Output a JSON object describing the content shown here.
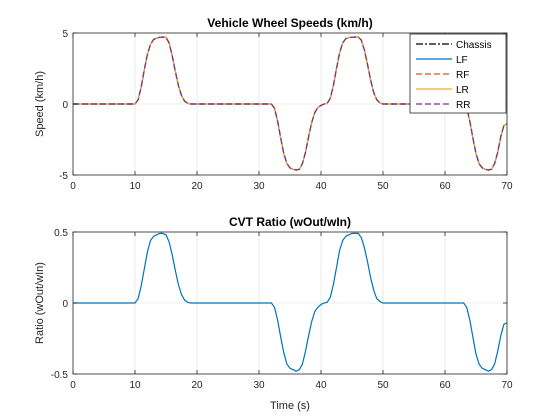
{
  "chart_data": [
    {
      "type": "line",
      "title": "Vehicle Wheel Speeds (km/h)",
      "xlabel": "",
      "ylabel": "Speed (km/h)",
      "xlim": [
        0,
        70
      ],
      "ylim": [
        -5,
        5
      ],
      "xticks": [
        "0",
        "10",
        "20",
        "30",
        "40",
        "50",
        "60",
        "70"
      ],
      "yticks": [
        "-5",
        "0",
        "5"
      ],
      "grid": true,
      "legend_position": "top-right",
      "series": [
        {
          "name": "Chassis",
          "color": "#000000",
          "style": "dash-dot"
        },
        {
          "name": "LF",
          "color": "#0072BD",
          "style": "solid"
        },
        {
          "name": "RF",
          "color": "#D95319",
          "style": "dashed"
        },
        {
          "name": "LR",
          "color": "#EDB120",
          "style": "solid"
        },
        {
          "name": "RR",
          "color": "#7E2F8E",
          "style": "dashed"
        }
      ],
      "x": [
        0,
        10,
        10.5,
        11,
        11.5,
        12,
        12.5,
        13,
        13.5,
        14,
        14.5,
        15,
        15.5,
        16,
        16.5,
        17,
        17.5,
        18,
        18.5,
        19,
        20,
        32,
        32.5,
        33,
        33.5,
        34,
        34.5,
        35,
        35.5,
        36,
        36.5,
        37,
        37.5,
        38,
        38.5,
        39,
        39.5,
        40,
        40.5,
        41,
        41.5,
        42,
        42.5,
        43,
        43.5,
        44,
        44.5,
        45,
        45.5,
        46,
        46.5,
        47,
        47.5,
        48,
        48.5,
        49,
        49.5,
        50,
        63,
        63.5,
        64,
        64.5,
        65,
        65.5,
        66,
        66.5,
        67,
        67.5,
        68,
        68.5,
        69,
        69.5,
        70
      ],
      "values": [
        0,
        0,
        0.3,
        1.2,
        2.4,
        3.5,
        4.2,
        4.55,
        4.65,
        4.7,
        4.72,
        4.7,
        4.3,
        3.4,
        2.3,
        1.3,
        0.6,
        0.2,
        0.05,
        0,
        0,
        0,
        -0.3,
        -1.2,
        -2.4,
        -3.5,
        -4.2,
        -4.5,
        -4.6,
        -4.65,
        -4.6,
        -4.2,
        -3.4,
        -2.3,
        -1.3,
        -0.6,
        -0.25,
        -0.1,
        0,
        0.05,
        0.4,
        1.3,
        2.5,
        3.6,
        4.3,
        4.6,
        4.68,
        4.7,
        4.72,
        4.72,
        4.5,
        3.8,
        2.8,
        1.7,
        0.8,
        0.3,
        0.08,
        0,
        0,
        -0.3,
        -1.2,
        -2.4,
        -3.5,
        -4.2,
        -4.5,
        -4.6,
        -4.65,
        -4.6,
        -4.2,
        -3.4,
        -2.3,
        -1.5,
        -1.4
      ]
    },
    {
      "type": "line",
      "title": "CVT Ratio (wOut/wIn)",
      "xlabel": "Time (s)",
      "ylabel": "Ratio (wOut/wIn)",
      "xlim": [
        0,
        70
      ],
      "ylim": [
        -0.5,
        0.5
      ],
      "xticks": [
        "0",
        "10",
        "20",
        "30",
        "40",
        "50",
        "60",
        "70"
      ],
      "yticks": [
        "-0.5",
        "0",
        "0.5"
      ],
      "grid": true,
      "series": [
        {
          "color": "#0072BD",
          "style": "solid"
        }
      ],
      "x": [
        0,
        10,
        10.5,
        11,
        11.5,
        12,
        12.5,
        13,
        13.5,
        14,
        14.5,
        15,
        15.5,
        16,
        16.5,
        17,
        17.5,
        18,
        18.5,
        19,
        20,
        32,
        32.5,
        33,
        33.5,
        34,
        34.5,
        35,
        35.5,
        36,
        36.5,
        37,
        37.5,
        38,
        38.5,
        39,
        39.5,
        40,
        40.5,
        41,
        41.5,
        42,
        42.5,
        43,
        43.5,
        44,
        44.5,
        45,
        45.5,
        46,
        46.5,
        47,
        47.5,
        48,
        48.5,
        49,
        49.5,
        50,
        63,
        63.5,
        64,
        64.5,
        65,
        65.5,
        66,
        66.5,
        67,
        67.5,
        68,
        68.5,
        69,
        69.5,
        70
      ],
      "values": [
        0,
        0,
        0.03,
        0.12,
        0.24,
        0.36,
        0.44,
        0.47,
        0.48,
        0.49,
        0.49,
        0.48,
        0.43,
        0.34,
        0.23,
        0.13,
        0.06,
        0.02,
        0.005,
        0,
        0,
        0,
        -0.03,
        -0.12,
        -0.24,
        -0.35,
        -0.43,
        -0.46,
        -0.47,
        -0.48,
        -0.47,
        -0.43,
        -0.34,
        -0.23,
        -0.13,
        -0.06,
        -0.03,
        -0.01,
        0,
        0.005,
        0.04,
        0.13,
        0.25,
        0.37,
        0.44,
        0.47,
        0.48,
        0.49,
        0.49,
        0.49,
        0.46,
        0.39,
        0.29,
        0.18,
        0.09,
        0.03,
        0.01,
        0,
        0,
        -0.03,
        -0.12,
        -0.24,
        -0.36,
        -0.43,
        -0.46,
        -0.47,
        -0.48,
        -0.47,
        -0.43,
        -0.34,
        -0.23,
        -0.15,
        -0.14
      ]
    }
  ]
}
